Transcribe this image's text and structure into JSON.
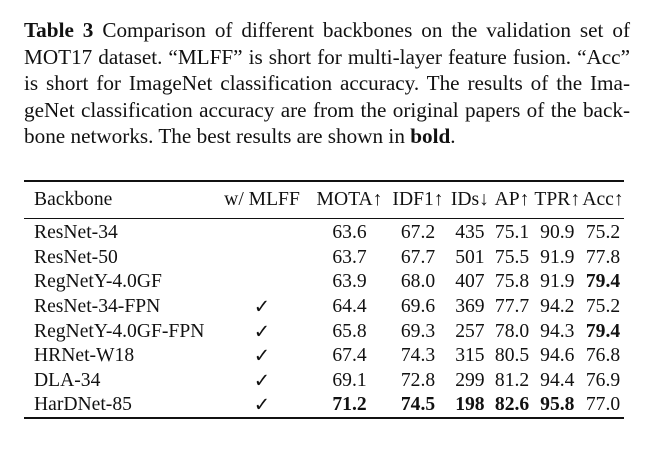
{
  "caption": {
    "label": "Table 3",
    "text_part1": " Comparison of different backbones on the validation set of MOT17 dataset. “MLFF” is short for multi-layer feature fusion. “Acc” is short for ImageNet classification accuracy. The results of the Ima­geNet classification accuracy are from the original papers of the back­bone networks. The best results are shown in ",
    "bold_word": "bold",
    "text_part2": "."
  },
  "table": {
    "headers": {
      "backbone": "Backbone",
      "mlff": "w/ MLFF",
      "mota": "MOTA↑",
      "idf1": "IDF1↑",
      "ids": "IDs↓",
      "ap": "AP↑",
      "tpr": "TPR↑",
      "acc": "Acc↑"
    },
    "rows": [
      {
        "backbone": "ResNet-34",
        "mlff": "",
        "mota": "63.6",
        "idf1": "67.2",
        "ids": "435",
        "ap": "75.1",
        "tpr": "90.9",
        "acc": "75.2"
      },
      {
        "backbone": "ResNet-50",
        "mlff": "",
        "mota": "63.7",
        "idf1": "67.7",
        "ids": "501",
        "ap": "75.5",
        "tpr": "91.9",
        "acc": "77.8"
      },
      {
        "backbone": "RegNetY-4.0GF",
        "mlff": "",
        "mota": "63.9",
        "idf1": "68.0",
        "ids": "407",
        "ap": "75.8",
        "tpr": "91.9",
        "acc": "79.4"
      },
      {
        "backbone": "ResNet-34-FPN",
        "mlff": "✓",
        "mota": "64.4",
        "idf1": "69.6",
        "ids": "369",
        "ap": "77.7",
        "tpr": "94.2",
        "acc": "75.2"
      },
      {
        "backbone": "RegNetY-4.0GF-FPN",
        "mlff": "✓",
        "mota": "65.8",
        "idf1": "69.3",
        "ids": "257",
        "ap": "78.0",
        "tpr": "94.3",
        "acc": "79.4"
      },
      {
        "backbone": "HRNet-W18",
        "mlff": "✓",
        "mota": "67.4",
        "idf1": "74.3",
        "ids": "315",
        "ap": "80.5",
        "tpr": "94.6",
        "acc": "76.8"
      },
      {
        "backbone": "DLA-34",
        "mlff": "✓",
        "mota": "69.1",
        "idf1": "72.8",
        "ids": "299",
        "ap": "81.2",
        "tpr": "94.4",
        "acc": "76.9"
      },
      {
        "backbone": "HarDNet-85",
        "mlff": "✓",
        "mota": "71.2",
        "idf1": "74.5",
        "ids": "198",
        "ap": "82.6",
        "tpr": "95.8",
        "acc": "77.0"
      }
    ],
    "bold_cells": [
      {
        "row": 2,
        "col": "acc"
      },
      {
        "row": 4,
        "col": "acc"
      },
      {
        "row": 7,
        "col": "mota"
      },
      {
        "row": 7,
        "col": "idf1"
      },
      {
        "row": 7,
        "col": "ids"
      },
      {
        "row": 7,
        "col": "ap"
      },
      {
        "row": 7,
        "col": "tpr"
      }
    ]
  }
}
